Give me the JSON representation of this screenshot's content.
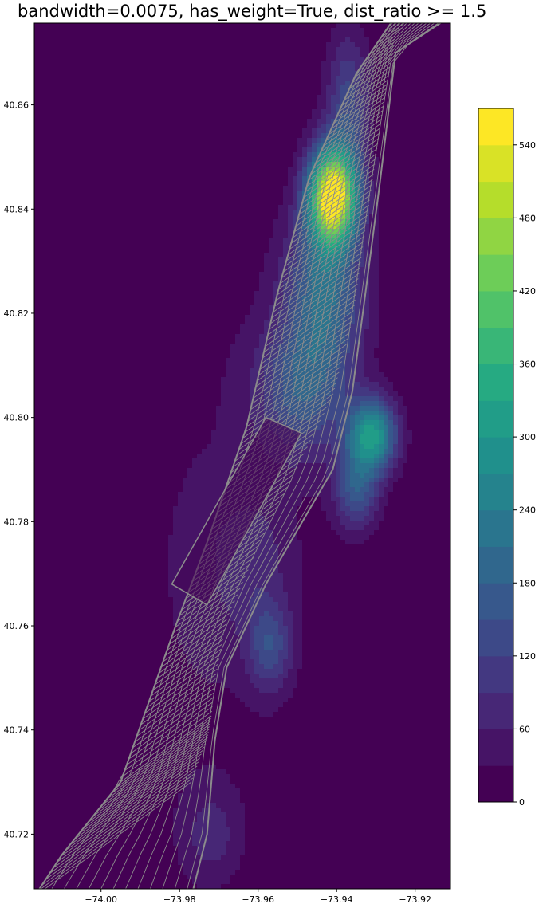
{
  "chart_data": {
    "type": "heatmap",
    "title": "bandwidth=0.0075, has_weight=True, dist_ratio >= 1.5",
    "xlim": [
      -74.017,
      -73.911
    ],
    "ylim": [
      40.7095,
      40.8757
    ],
    "xticks": [
      -74.0,
      -73.98,
      -73.96,
      -73.94,
      -73.92
    ],
    "xtick_labels": [
      "−74.00",
      "−73.98",
      "−73.96",
      "−73.94",
      "−73.92"
    ],
    "yticks": [
      40.72,
      40.74,
      40.76,
      40.78,
      40.8,
      40.82,
      40.84,
      40.86
    ],
    "ytick_labels": [
      "40.72",
      "40.74",
      "40.76",
      "40.78",
      "40.80",
      "40.82",
      "40.84",
      "40.86"
    ],
    "colorbar": {
      "colormap": "viridis",
      "min": 0,
      "max": 570,
      "levels": [
        0,
        30,
        60,
        90,
        120,
        150,
        180,
        210,
        240,
        270,
        300,
        330,
        360,
        390,
        420,
        450,
        480,
        510,
        540,
        570
      ],
      "tick_values": [
        0,
        60,
        120,
        180,
        240,
        300,
        360,
        420,
        480,
        540
      ],
      "tick_labels": [
        "0",
        "60",
        "120",
        "180",
        "240",
        "300",
        "360",
        "420",
        "480",
        "540"
      ]
    },
    "hotspots": [
      {
        "x": -73.941,
        "y": 40.8425,
        "value": 570,
        "sx": 0.0043,
        "sy": 0.0065
      },
      {
        "x": -73.937,
        "y": 40.86,
        "value": 130,
        "sx": 0.004,
        "sy": 0.01
      },
      {
        "x": -73.943,
        "y": 40.824,
        "value": 200,
        "sx": 0.007,
        "sy": 0.011
      },
      {
        "x": -73.931,
        "y": 40.7965,
        "value": 300,
        "sx": 0.0045,
        "sy": 0.005
      },
      {
        "x": -73.949,
        "y": 40.805,
        "value": 150,
        "sx": 0.008,
        "sy": 0.009
      },
      {
        "x": -73.935,
        "y": 40.786,
        "value": 150,
        "sx": 0.004,
        "sy": 0.0055
      },
      {
        "x": -73.957,
        "y": 40.756,
        "value": 120,
        "sx": 0.004,
        "sy": 0.006
      },
      {
        "x": -73.962,
        "y": 40.772,
        "value": 60,
        "sx": 0.008,
        "sy": 0.01
      },
      {
        "x": -73.972,
        "y": 40.72,
        "value": 60,
        "sx": 0.005,
        "sy": 0.006
      },
      {
        "x": -73.975,
        "y": 40.77,
        "value": 30,
        "sx": 0.02,
        "sy": 0.06
      }
    ],
    "overlay": {
      "description_color": "#8c8c8c"
    },
    "grid": false
  },
  "colors": {
    "street_lines": "#8c8c8c",
    "background": "#440154"
  }
}
